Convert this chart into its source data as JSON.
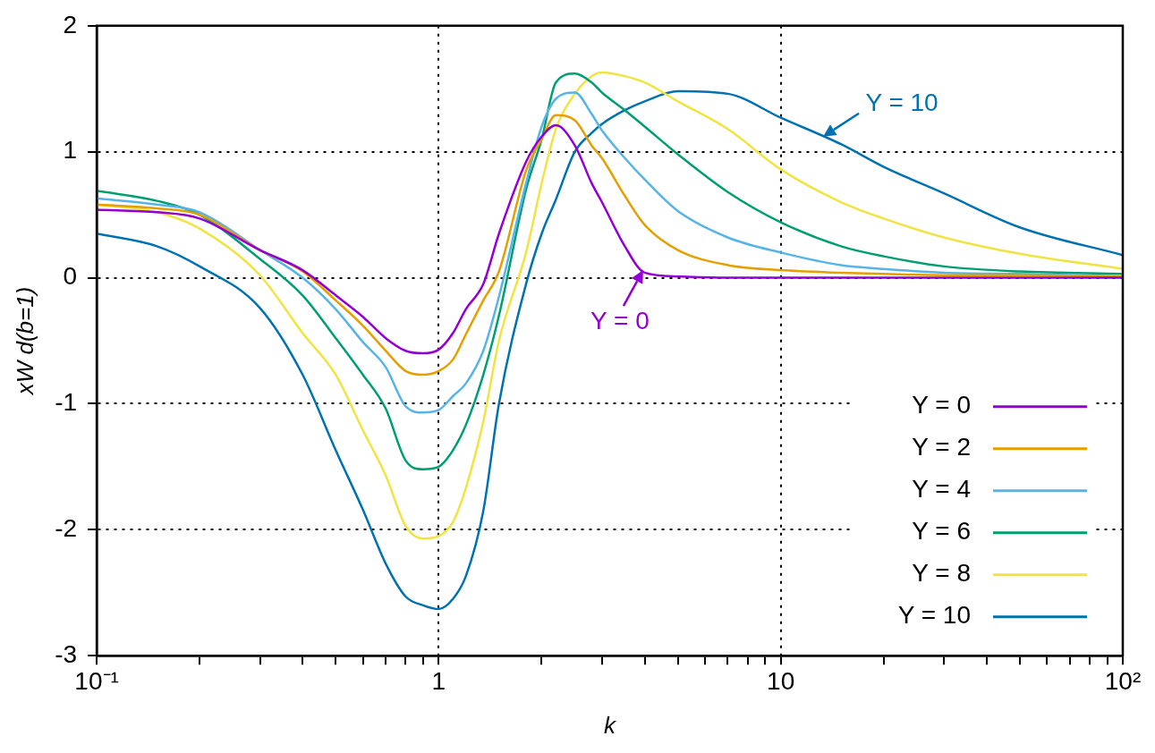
{
  "chart_data": {
    "type": "line",
    "xlabel": "k",
    "ylabel": "xW d(b=1)",
    "log": "x",
    "grid": true,
    "legend": "bottom right",
    "marker": "none",
    "line_style": "solid",
    "x": [
      0.1,
      0.15,
      0.2,
      0.3,
      0.4,
      0.5,
      0.6,
      0.7,
      0.8,
      0.9,
      1.0,
      1.1,
      1.2,
      1.35,
      1.5,
      1.8,
      2.0,
      2.2,
      2.5,
      2.8,
      3,
      3.5,
      4,
      5,
      7,
      10,
      15,
      20,
      30,
      50,
      100
    ],
    "xlim": [
      0.1,
      100
    ],
    "xticks": [
      {
        "value": 0.1,
        "label": "10⁻¹"
      },
      {
        "value": 0.2,
        "label": null
      },
      {
        "value": 0.3,
        "label": null
      },
      {
        "value": 0.4,
        "label": null
      },
      {
        "value": 0.5,
        "label": null
      },
      {
        "value": 0.6,
        "label": null
      },
      {
        "value": 0.7,
        "label": null
      },
      {
        "value": 0.8,
        "label": null
      },
      {
        "value": 0.9,
        "label": null
      },
      1,
      {
        "value": 2,
        "label": null
      },
      {
        "value": 3,
        "label": null
      },
      {
        "value": 4,
        "label": null
      },
      {
        "value": 5,
        "label": null
      },
      {
        "value": 6,
        "label": null
      },
      {
        "value": 7,
        "label": null
      },
      {
        "value": 8,
        "label": null
      },
      {
        "value": 9,
        "label": null
      },
      10,
      {
        "value": 20,
        "label": null
      },
      {
        "value": 30,
        "label": null
      },
      {
        "value": 40,
        "label": null
      },
      {
        "value": 50,
        "label": null
      },
      {
        "value": 60,
        "label": null
      },
      {
        "value": 70,
        "label": null
      },
      {
        "value": 80,
        "label": null
      },
      {
        "value": 90,
        "label": null
      },
      {
        "value": 100,
        "label": "10²"
      }
    ],
    "ylim": [
      -3,
      2
    ],
    "yticks": [
      -3,
      -2,
      -1,
      0,
      1,
      2
    ],
    "series": [
      {
        "name": "Y = 0",
        "color": "#9400d3",
        "values": [
          0.54,
          0.52,
          0.47,
          0.22,
          0.06,
          -0.14,
          -0.31,
          -0.48,
          -0.58,
          -0.6,
          -0.57,
          -0.44,
          -0.25,
          -0.05,
          0.35,
          0.92,
          1.12,
          1.21,
          1.05,
          0.75,
          0.6,
          0.25,
          0.04,
          0.01,
          0,
          0,
          0,
          0,
          0,
          0,
          0
        ]
      },
      {
        "name": "Y = 2",
        "color": "#e69f00",
        "values": [
          0.58,
          0.55,
          0.5,
          0.22,
          0.05,
          -0.18,
          -0.38,
          -0.58,
          -0.74,
          -0.77,
          -0.74,
          -0.65,
          -0.45,
          -0.18,
          0.05,
          0.85,
          1.1,
          1.29,
          1.25,
          1.05,
          0.95,
          0.65,
          0.42,
          0.22,
          0.1,
          0.06,
          0.04,
          0.03,
          0.02,
          0.02,
          0.01
        ]
      },
      {
        "name": "Y = 4",
        "color": "#56b4e9",
        "values": [
          0.63,
          0.58,
          0.52,
          0.22,
          0.0,
          -0.25,
          -0.51,
          -0.71,
          -1.02,
          -1.07,
          -1.05,
          -0.94,
          -0.84,
          -0.58,
          -0.15,
          0.75,
          1.2,
          1.42,
          1.47,
          1.3,
          1.17,
          0.95,
          0.78,
          0.53,
          0.32,
          0.2,
          0.1,
          0.07,
          0.04,
          0.03,
          0.01
        ]
      },
      {
        "name": "Y = 6",
        "color": "#009e73",
        "values": [
          0.69,
          0.61,
          0.5,
          0.15,
          -0.14,
          -0.48,
          -0.77,
          -1.04,
          -1.45,
          -1.52,
          -1.5,
          -1.37,
          -1.17,
          -0.77,
          -0.3,
          0.7,
          1.1,
          1.55,
          1.62,
          1.55,
          1.47,
          1.33,
          1.2,
          0.98,
          0.68,
          0.44,
          0.25,
          0.17,
          0.09,
          0.05,
          0.03
        ]
      },
      {
        "name": "Y = 8",
        "color": "#f0e442",
        "values": [
          0.58,
          0.52,
          0.39,
          0.02,
          -0.44,
          -0.77,
          -1.21,
          -1.57,
          -1.97,
          -2.07,
          -2.05,
          -1.94,
          -1.67,
          -1.14,
          -0.5,
          0.2,
          0.75,
          1.18,
          1.46,
          1.6,
          1.63,
          1.6,
          1.55,
          1.4,
          1.18,
          0.86,
          0.6,
          0.47,
          0.32,
          0.19,
          0.07
        ]
      },
      {
        "name": "Y = 10",
        "color": "#0072b2",
        "values": [
          0.35,
          0.25,
          0.09,
          -0.24,
          -0.77,
          -1.37,
          -1.84,
          -2.27,
          -2.53,
          -2.6,
          -2.63,
          -2.55,
          -2.37,
          -1.85,
          -1.0,
          -0.05,
          0.35,
          0.62,
          1.0,
          1.15,
          1.22,
          1.33,
          1.4,
          1.48,
          1.46,
          1.27,
          1.06,
          0.88,
          0.67,
          0.4,
          0.18
        ]
      }
    ],
    "annotations": [
      {
        "text": "Y = 0",
        "x": 3.96,
        "y": 0.06
      },
      {
        "text": "Y = 10",
        "x": 13.3,
        "y": 1.12
      }
    ]
  }
}
